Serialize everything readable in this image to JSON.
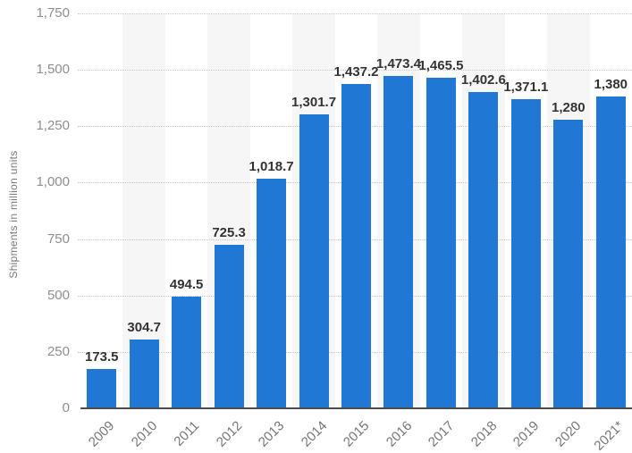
{
  "chart_data": {
    "type": "bar",
    "title": "",
    "xlabel": "",
    "ylabel": "Shipments in million units",
    "categories": [
      "2009",
      "2010",
      "2011",
      "2012",
      "2013",
      "2014",
      "2015",
      "2016",
      "2017",
      "2018",
      "2019",
      "2020",
      "2021*"
    ],
    "values": [
      173.5,
      304.7,
      494.5,
      725.3,
      1018.7,
      1301.7,
      1437.2,
      1473.4,
      1465.5,
      1402.6,
      1371.1,
      1280,
      1380
    ],
    "value_labels": [
      "173.5",
      "304.7",
      "494.5",
      "725.3",
      "1,018.7",
      "1,301.7",
      "1,437.2",
      "1,473.4",
      "1,465.5",
      "1,402.6",
      "1,371.1",
      "1,280",
      "1,380"
    ],
    "ylim": [
      0,
      1750
    ],
    "ytick_values": [
      0,
      250,
      500,
      750,
      1000,
      1250,
      1500,
      1750
    ],
    "ytick_labels": [
      "0",
      "250",
      "500",
      "750",
      "1,000",
      "1,250",
      "1,500",
      "1,750"
    ],
    "grid": "horizontal-dotted",
    "legend": "none",
    "colors": {
      "bar": "#2178d4",
      "stripe": "#f6f6f6",
      "gridline": "#c9c9c9",
      "axis_line": "#4d4d4d",
      "data_label": "#333333",
      "tick_label": "#8e8e8e",
      "x_label": "#757575",
      "y_title": "#7a7a7a"
    }
  }
}
